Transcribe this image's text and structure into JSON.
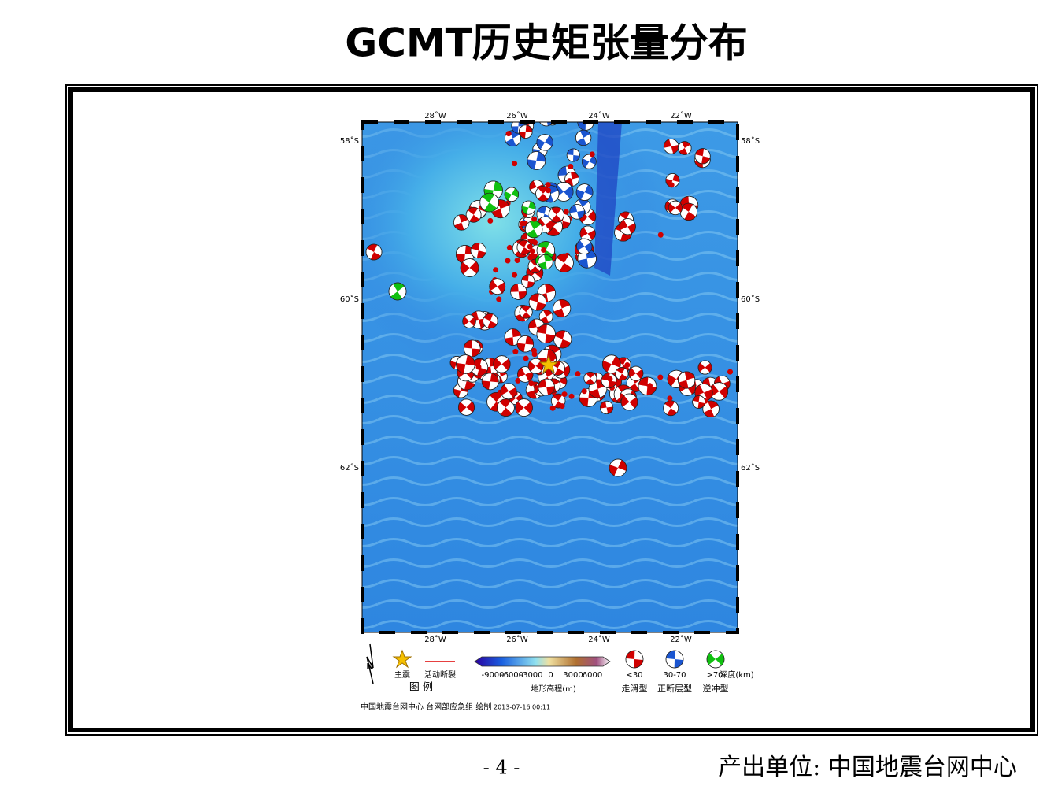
{
  "title": "GCMT历史矩张量分布",
  "map": {
    "lon_labels": [
      "28˚W",
      "26˚W",
      "24˚W",
      "22˚W"
    ],
    "lat_labels": [
      "58˚S",
      "60˚S",
      "62˚S"
    ]
  },
  "legend": {
    "north": "N",
    "mainshock": "主震",
    "fault": "活动断裂",
    "legend_title": "图  例",
    "colorbar_ticks": [
      -9000,
      -6000,
      -3000,
      0,
      3000,
      6000
    ],
    "colorbar_title": "地形高程(m)",
    "depth_classes": [
      "<30",
      "30-70",
      ">70"
    ],
    "depth_unit": "深度(km)",
    "mechanisms": [
      "走滑型",
      "正断层型",
      "逆冲型"
    ]
  },
  "credit": "中国地震台网中心 台网部应急组 绘制",
  "timestamp": "2013-07-16 00:11",
  "page_number": "- 4 -",
  "producer": "产出单位: 中国地震台网中心"
}
